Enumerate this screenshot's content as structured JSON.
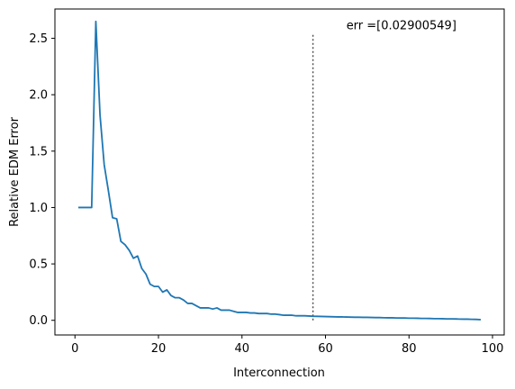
{
  "chart_data": {
    "type": "line",
    "xlabel": "Interconnection",
    "ylabel": "Relative EDM Error",
    "xlim": [
      -4.8,
      102.8
    ],
    "ylim": [
      -0.13,
      2.76
    ],
    "xticks": [
      0,
      20,
      40,
      60,
      80,
      100
    ],
    "yticks": [
      0.0,
      0.5,
      1.0,
      1.5,
      2.0,
      2.5
    ],
    "xtick_labels": [
      "0",
      "20",
      "40",
      "60",
      "80",
      "100"
    ],
    "ytick_labels": [
      "0.0",
      "0.5",
      "1.0",
      "1.5",
      "2.0",
      "2.5"
    ],
    "grid": false,
    "series": [
      {
        "color": "#1f77b4",
        "x": [
          1,
          2,
          3,
          4,
          5,
          6,
          7,
          8,
          9,
          10,
          11,
          12,
          13,
          14,
          15,
          16,
          17,
          18,
          19,
          20,
          21,
          22,
          23,
          24,
          25,
          26,
          27,
          28,
          29,
          30,
          31,
          32,
          33,
          34,
          35,
          36,
          37,
          38,
          39,
          40,
          41,
          42,
          43,
          44,
          45,
          46,
          47,
          48,
          49,
          50,
          51,
          52,
          53,
          54,
          55,
          56,
          57,
          58,
          59,
          60,
          61,
          62,
          63,
          64,
          65,
          66,
          67,
          68,
          69,
          70,
          71,
          72,
          73,
          74,
          75,
          76,
          77,
          78,
          79,
          80,
          81,
          82,
          83,
          84,
          85,
          86,
          87,
          88,
          89,
          90,
          91,
          92,
          93,
          94,
          95,
          96,
          97
        ],
        "y": [
          1.0,
          1.0,
          1.0,
          1.0,
          2.65,
          1.82,
          1.38,
          1.15,
          0.91,
          0.9,
          0.7,
          0.67,
          0.62,
          0.55,
          0.57,
          0.46,
          0.41,
          0.32,
          0.3,
          0.3,
          0.25,
          0.27,
          0.22,
          0.2,
          0.2,
          0.18,
          0.15,
          0.15,
          0.13,
          0.11,
          0.11,
          0.11,
          0.1,
          0.11,
          0.09,
          0.09,
          0.09,
          0.08,
          0.07,
          0.07,
          0.07,
          0.065,
          0.065,
          0.06,
          0.06,
          0.06,
          0.055,
          0.055,
          0.05,
          0.045,
          0.045,
          0.045,
          0.04,
          0.04,
          0.04,
          0.038,
          0.036,
          0.035,
          0.034,
          0.033,
          0.032,
          0.031,
          0.03,
          0.03,
          0.029,
          0.028,
          0.027,
          0.027,
          0.026,
          0.026,
          0.025,
          0.024,
          0.024,
          0.023,
          0.022,
          0.022,
          0.021,
          0.02,
          0.02,
          0.019,
          0.019,
          0.018,
          0.017,
          0.017,
          0.016,
          0.015,
          0.015,
          0.014,
          0.013,
          0.013,
          0.012,
          0.011,
          0.01,
          0.01,
          0.009,
          0.008,
          0.006
        ]
      }
    ],
    "vline": {
      "x": 57,
      "y0": 0.0,
      "y1": 2.55,
      "style": "dotted",
      "color": "#555555"
    },
    "annotation": {
      "text": "err =[0.02900549]",
      "x": 65,
      "y": 2.58
    }
  }
}
